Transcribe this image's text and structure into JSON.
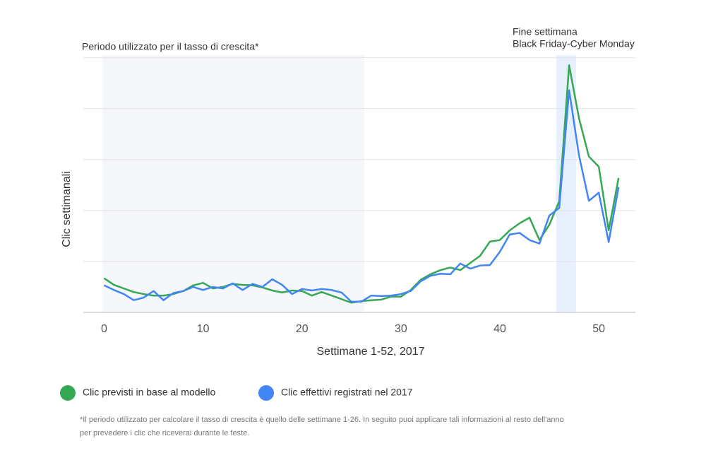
{
  "chart_data": {
    "type": "line",
    "title": "Periodo utilizzato per il tasso di crescita*",
    "annotation": [
      "Fine settimana",
      "Black Friday-Cyber Monday"
    ],
    "x_label": "Settimane 1-52, 2017",
    "y_label": "Clic settimanali",
    "x": [
      0,
      1,
      2,
      3,
      4,
      5,
      6,
      7,
      8,
      9,
      10,
      11,
      12,
      13,
      14,
      15,
      16,
      17,
      18,
      19,
      20,
      21,
      22,
      23,
      24,
      25,
      26,
      27,
      28,
      29,
      30,
      31,
      32,
      33,
      34,
      35,
      36,
      37,
      38,
      39,
      40,
      41,
      42,
      43,
      44,
      45,
      46,
      47,
      48,
      49,
      50,
      51,
      52
    ],
    "series": [
      {
        "name": "Clic previsti in base al modello",
        "color": "#34a853",
        "values": [
          0.67,
          0.54,
          0.47,
          0.4,
          0.36,
          0.33,
          0.33,
          0.36,
          0.42,
          0.53,
          0.58,
          0.47,
          0.5,
          0.56,
          0.54,
          0.53,
          0.49,
          0.43,
          0.39,
          0.43,
          0.42,
          0.33,
          0.4,
          0.33,
          0.26,
          0.19,
          0.22,
          0.24,
          0.25,
          0.31,
          0.31,
          0.44,
          0.64,
          0.75,
          0.83,
          0.88,
          0.83,
          0.97,
          1.11,
          1.39,
          1.42,
          1.61,
          1.75,
          1.86,
          1.42,
          1.72,
          2.18,
          4.85,
          3.81,
          3.06,
          2.86,
          1.61,
          2.64
        ]
      },
      {
        "name": "Clic effettivi registrati nel 2017",
        "color": "#4285f4",
        "values": [
          0.53,
          0.44,
          0.36,
          0.24,
          0.29,
          0.42,
          0.24,
          0.38,
          0.42,
          0.5,
          0.44,
          0.5,
          0.47,
          0.57,
          0.44,
          0.56,
          0.5,
          0.65,
          0.54,
          0.36,
          0.46,
          0.43,
          0.46,
          0.44,
          0.39,
          0.21,
          0.21,
          0.33,
          0.32,
          0.33,
          0.36,
          0.42,
          0.61,
          0.72,
          0.76,
          0.75,
          0.96,
          0.86,
          0.92,
          0.93,
          1.19,
          1.53,
          1.56,
          1.42,
          1.35,
          1.9,
          2.05,
          4.36,
          3.08,
          2.19,
          2.35,
          1.38,
          2.46
        ]
      }
    ],
    "xlim": [
      -2.1,
      53.7
    ],
    "xticks": [
      0,
      10,
      20,
      30,
      40,
      50
    ],
    "ylim": [
      0,
      5.05
    ],
    "yticks": [
      0,
      1,
      2,
      3,
      4,
      5
    ],
    "y_tick_labels": false,
    "grid": true,
    "shaded_ranges": [
      {
        "range": [
          -0.2,
          26.3
        ],
        "color": "#f5f7fa"
      },
      {
        "range": [
          45.7,
          47.7
        ],
        "color": "#e8f0fd"
      }
    ],
    "footnote": [
      "*Il periodo utilizzato per calcolare il tasso di crescita è quello delle settimane 1-26. In seguito puoi applicare tali informazioni al resto dell'anno",
      "per prevedere i clic che riceverai durante le feste."
    ]
  }
}
